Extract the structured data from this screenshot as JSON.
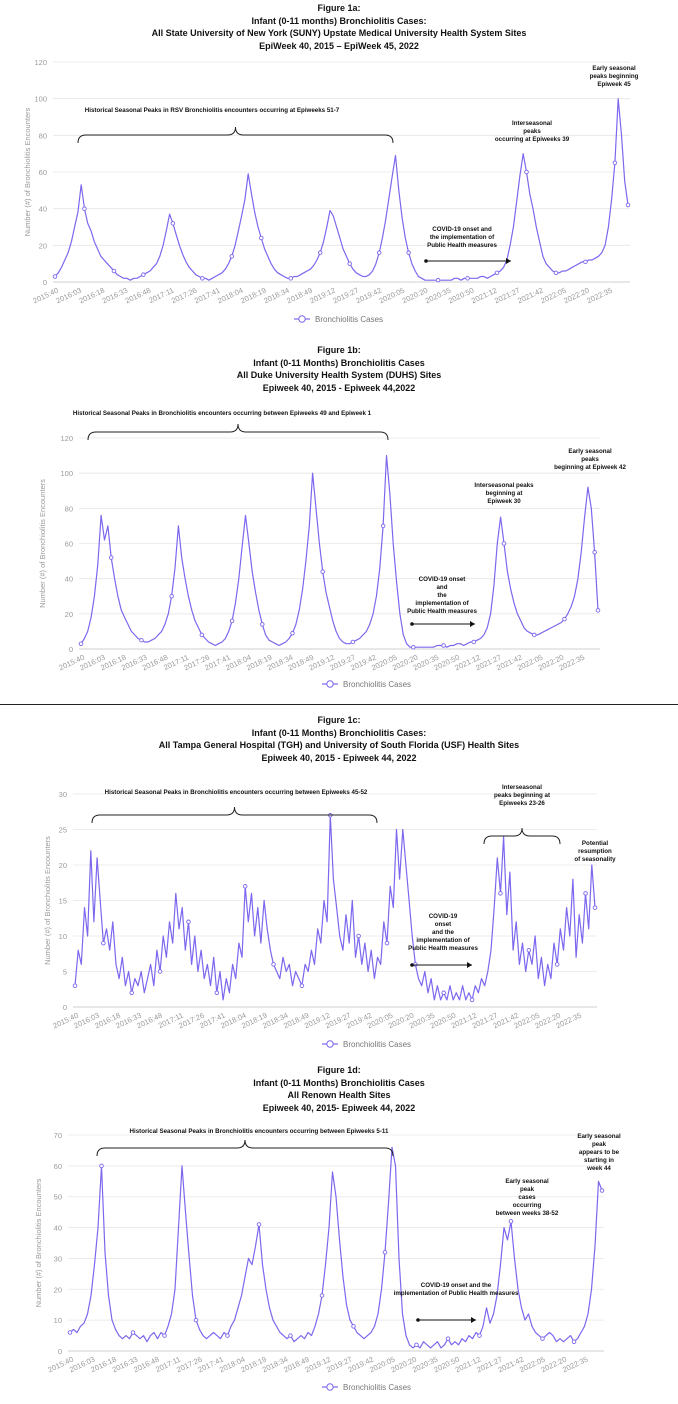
{
  "chart_data": [
    {
      "id": "a",
      "type": "line",
      "title": [
        "Figure 1a:",
        "Infant (0-11 months) Bronchiolitis Cases:",
        "All State University of New York (SUNY) Upstate Medical University Health System Sites",
        "EpiWeek 40, 2015 – EpiWeek 45, 2022"
      ],
      "ylabel": "Number (#) of Bronchiolitis Encounters",
      "ylim": [
        0,
        120
      ],
      "yticks": [
        0,
        20,
        40,
        60,
        80,
        100,
        120
      ],
      "xticks": [
        "2015:40",
        "2016:03",
        "2016:18",
        "2016:33",
        "2016:48",
        "2017:11",
        "2017:26",
        "2017:41",
        "2018:04",
        "2018:19",
        "2018:34",
        "2018:49",
        "2019:12",
        "2019:27",
        "2019:42",
        "2020:05",
        "2020:20",
        "2020:35",
        "2020:50",
        "2021:12",
        "2021:27",
        "2021:42",
        "2022:05",
        "2022:20",
        "2022:35"
      ],
      "legend": "Bronchiolitis Cases",
      "color": "#7b68ee",
      "annotations": [
        {
          "text": "Historical Seasonal Peaks in RSV Bronchiolitis encounters occurring at Epiweeks 51-7"
        },
        {
          "text": "Interseasonal peaks occurring at Epiweeks 39"
        },
        {
          "text": "Early seasonal peaks beginning Epiweek 45"
        },
        {
          "text": "COVID-19 onset and the implementation of Public Health measures"
        }
      ],
      "series": [
        {
          "name": "Bronchiolitis Cases",
          "values": [
            3,
            5,
            8,
            12,
            16,
            22,
            30,
            38,
            53,
            40,
            32,
            28,
            22,
            18,
            14,
            12,
            10,
            8,
            6,
            4,
            3,
            2,
            2,
            1,
            2,
            2,
            3,
            4,
            5,
            6,
            8,
            10,
            14,
            20,
            28,
            37,
            32,
            26,
            20,
            15,
            11,
            8,
            6,
            4,
            3,
            2,
            2,
            1,
            2,
            3,
            4,
            5,
            7,
            10,
            14,
            20,
            28,
            36,
            45,
            59,
            48,
            38,
            30,
            24,
            18,
            14,
            10,
            7,
            5,
            4,
            3,
            2,
            2,
            3,
            3,
            4,
            5,
            6,
            7,
            9,
            12,
            16,
            22,
            30,
            39,
            36,
            30,
            24,
            18,
            14,
            10,
            7,
            5,
            4,
            3,
            3,
            4,
            6,
            10,
            16,
            24,
            34,
            46,
            58,
            69,
            50,
            35,
            24,
            16,
            10,
            6,
            3,
            2,
            1,
            1,
            1,
            1,
            1,
            1,
            1,
            1,
            1,
            2,
            2,
            1,
            2,
            2,
            2,
            2,
            2,
            3,
            3,
            2,
            3,
            4,
            5,
            6,
            8,
            12,
            20,
            30,
            44,
            58,
            70,
            60,
            48,
            40,
            30,
            22,
            14,
            10,
            8,
            6,
            5,
            5,
            6,
            6,
            7,
            8,
            9,
            10,
            11,
            11,
            12,
            12,
            13,
            14,
            16,
            20,
            30,
            45,
            65,
            100,
            80,
            55,
            42
          ]
        }
      ]
    },
    {
      "id": "b",
      "type": "line",
      "title": [
        "Figure 1b:",
        "Infant (0-11 Months) Bronchiolitis Cases",
        "All Duke University Health System (DUHS) Sites",
        "Epiweek 40, 2015 - Epiweek 44,2022"
      ],
      "ylabel": "Number (#) of Bronchiolitis Encounters",
      "ylim": [
        0,
        120
      ],
      "yticks": [
        0,
        20,
        40,
        60,
        80,
        100,
        120
      ],
      "xticks": [
        "2015:40",
        "2016:03",
        "2016:18",
        "2016:33",
        "2016:48",
        "2017:11",
        "2017:26",
        "2017:41",
        "2018:04",
        "2018:19",
        "2018:34",
        "2018:49",
        "2019:12",
        "2019:27",
        "2019:42",
        "2020:05",
        "2020:20",
        "2020:35",
        "2020:50",
        "2021:12",
        "2021:27",
        "2021:42",
        "2022:05",
        "2022:20",
        "2022:35"
      ],
      "legend": "Bronchiolitis Cases",
      "color": "#7b68ee",
      "annotations": [
        {
          "text": "Historical Seasonal Peaks in Bronchiolitis encounters occurring between Epiweeks 49 and Epiweek 1"
        },
        {
          "text": "Interseasonal peaks beginning at Epiweek 30"
        },
        {
          "text": "Early seasonal peaks beginning at Epiweek 42"
        },
        {
          "text": "COVID-19 onset and the implementation of Public Health measures"
        }
      ],
      "series": [
        {
          "name": "Bronchiolitis Cases",
          "values": [
            3,
            6,
            10,
            18,
            30,
            48,
            76,
            62,
            70,
            52,
            40,
            30,
            22,
            18,
            14,
            10,
            8,
            6,
            5,
            4,
            4,
            5,
            6,
            8,
            10,
            14,
            20,
            30,
            46,
            70,
            52,
            40,
            30,
            22,
            16,
            12,
            8,
            6,
            4,
            3,
            2,
            3,
            4,
            6,
            10,
            16,
            26,
            40,
            58,
            76,
            60,
            44,
            32,
            22,
            14,
            8,
            5,
            4,
            3,
            2,
            3,
            4,
            6,
            9,
            14,
            22,
            34,
            50,
            70,
            100,
            80,
            60,
            44,
            32,
            24,
            16,
            10,
            6,
            4,
            3,
            3,
            4,
            5,
            6,
            8,
            10,
            14,
            20,
            30,
            46,
            70,
            110,
            88,
            60,
            38,
            20,
            8,
            3,
            1,
            1,
            1,
            1,
            1,
            1,
            1,
            1,
            2,
            2,
            2,
            1,
            2,
            2,
            3,
            3,
            2,
            3,
            4,
            4,
            5,
            6,
            8,
            12,
            20,
            36,
            60,
            75,
            60,
            44,
            34,
            26,
            20,
            16,
            12,
            10,
            9,
            8,
            8,
            9,
            10,
            11,
            12,
            13,
            14,
            15,
            17,
            20,
            24,
            30,
            40,
            55,
            75,
            92,
            80,
            55,
            22
          ]
        }
      ]
    },
    {
      "id": "c",
      "type": "line",
      "title": [
        "Figure 1c:",
        "Infant (0-11 Months) Bronchiolitis Cases:",
        "All Tampa General Hospital (TGH) and University of South Florida (USF) Health Sites",
        "Epiweek 40, 2015 - Epiweek 44, 2022"
      ],
      "ylabel": "Number (#) of Bronchiolitis Encounters",
      "ylim": [
        0,
        30
      ],
      "yticks": [
        0,
        5,
        10,
        15,
        20,
        25,
        30
      ],
      "xticks": [
        "2015:40",
        "2016:03",
        "2016:18",
        "2016:33",
        "2016:48",
        "2017:11",
        "2017:26",
        "2017:41",
        "2018:04",
        "2018:19",
        "2018:34",
        "2018:49",
        "2019:12",
        "2019:27",
        "2019:42",
        "2020:05",
        "2020:20",
        "2020:35",
        "2020:50",
        "2021:12",
        "2021:27",
        "2021:42",
        "2022:05",
        "2022:20",
        "2022:35"
      ],
      "legend": "Bronchiolitis Cases",
      "color": "#7b68ee",
      "annotations": [
        {
          "text": "Historical Seasonal Peaks in Bronchiolitis encounters occurring between Epiweeks 45-52"
        },
        {
          "text": "Interseasonal peaks beginning at Epiweeks 23-26"
        },
        {
          "text": "Potential resumption of seasonality"
        },
        {
          "text": "COVID-19 onset and the implementation of Public Health measures"
        }
      ],
      "series": [
        {
          "name": "Bronchiolitis Cases",
          "values": [
            3,
            8,
            6,
            14,
            10,
            22,
            12,
            21,
            15,
            9,
            11,
            8,
            12,
            6,
            4,
            7,
            3,
            5,
            2,
            4,
            3,
            5,
            2,
            4,
            6,
            3,
            8,
            5,
            10,
            7,
            12,
            9,
            16,
            11,
            14,
            8,
            12,
            6,
            10,
            5,
            8,
            4,
            6,
            3,
            7,
            2,
            5,
            1,
            4,
            2,
            6,
            4,
            9,
            7,
            17,
            12,
            16,
            10,
            14,
            9,
            15,
            11,
            8,
            6,
            5,
            4,
            7,
            5,
            6,
            3,
            5,
            4,
            3,
            6,
            5,
            8,
            6,
            11,
            9,
            15,
            12,
            27,
            18,
            14,
            10,
            8,
            13,
            9,
            15,
            7,
            10,
            6,
            9,
            5,
            8,
            4,
            7,
            6,
            12,
            9,
            17,
            14,
            25,
            18,
            25,
            20,
            15,
            10,
            6,
            4,
            3,
            5,
            2,
            4,
            1,
            3,
            1,
            2,
            1,
            3,
            1,
            2,
            1,
            3,
            1,
            2,
            1,
            3,
            2,
            4,
            3,
            5,
            8,
            14,
            21,
            16,
            24,
            13,
            19,
            8,
            12,
            6,
            9,
            5,
            8,
            6,
            10,
            4,
            7,
            3,
            6,
            4,
            9,
            6,
            11,
            8,
            14,
            10,
            18,
            7,
            13,
            9,
            16,
            11,
            20,
            14
          ]
        }
      ]
    },
    {
      "id": "d",
      "type": "line",
      "title": [
        "Figure 1d:",
        "Infant (0-11 Months) Bronchiolitis Cases",
        "All Renown Health Sites",
        "Epiweek 40, 2015- Epiweek 44, 2022"
      ],
      "ylabel": "Number (#) of Bronchiolitis Encounters",
      "ylim": [
        0,
        70
      ],
      "yticks": [
        0,
        10,
        20,
        30,
        40,
        50,
        60,
        70
      ],
      "xticks": [
        "2015:40",
        "2016:03",
        "2016:18",
        "2016:33",
        "2016:48",
        "2017:11",
        "2017:26",
        "2017:41",
        "2018:04",
        "2018:19",
        "2018:34",
        "2018:49",
        "2019:12",
        "2019:27",
        "2019:42",
        "2020:05",
        "2020:20",
        "2020:35",
        "2020:50",
        "2021:12",
        "2021:27",
        "2021:42",
        "2022:05",
        "2022:20",
        "2022:35"
      ],
      "legend": "Bronchiolitis Cases",
      "color": "#7b68ee",
      "annotations": [
        {
          "text": "Historical Seasonal Peaks in Bronchiolitis encounters occurring between Epiweeks 5-11"
        },
        {
          "text": "Early seasonal peak cases occurring between weeks 38-52"
        },
        {
          "text": "Early seasonal peak appears to be starting in week 44"
        },
        {
          "text": "COVID-19 onset and the implementation of Public Health measures"
        }
      ],
      "series": [
        {
          "name": "Bronchiolitis Cases",
          "values": [
            6,
            7,
            6,
            8,
            9,
            12,
            18,
            28,
            40,
            60,
            32,
            18,
            10,
            7,
            5,
            4,
            5,
            4,
            6,
            5,
            4,
            5,
            3,
            5,
            6,
            4,
            6,
            5,
            8,
            12,
            20,
            40,
            60,
            45,
            31,
            18,
            10,
            7,
            5,
            4,
            5,
            6,
            5,
            4,
            6,
            5,
            8,
            10,
            14,
            18,
            24,
            30,
            28,
            34,
            41,
            28,
            20,
            14,
            10,
            8,
            6,
            5,
            4,
            5,
            3,
            4,
            5,
            4,
            6,
            5,
            8,
            12,
            18,
            28,
            40,
            58,
            50,
            36,
            24,
            15,
            10,
            8,
            6,
            5,
            4,
            5,
            6,
            8,
            12,
            20,
            32,
            48,
            66,
            60,
            30,
            12,
            5,
            2,
            1,
            2,
            1,
            3,
            2,
            1,
            2,
            3,
            1,
            2,
            4,
            2,
            3,
            2,
            4,
            3,
            5,
            4,
            6,
            5,
            8,
            14,
            9,
            12,
            18,
            28,
            40,
            36,
            42,
            30,
            20,
            14,
            10,
            12,
            8,
            6,
            5,
            4,
            5,
            6,
            5,
            3,
            4,
            3,
            4,
            5,
            3,
            4,
            6,
            8,
            12,
            20,
            34,
            55,
            52
          ]
        }
      ]
    }
  ]
}
